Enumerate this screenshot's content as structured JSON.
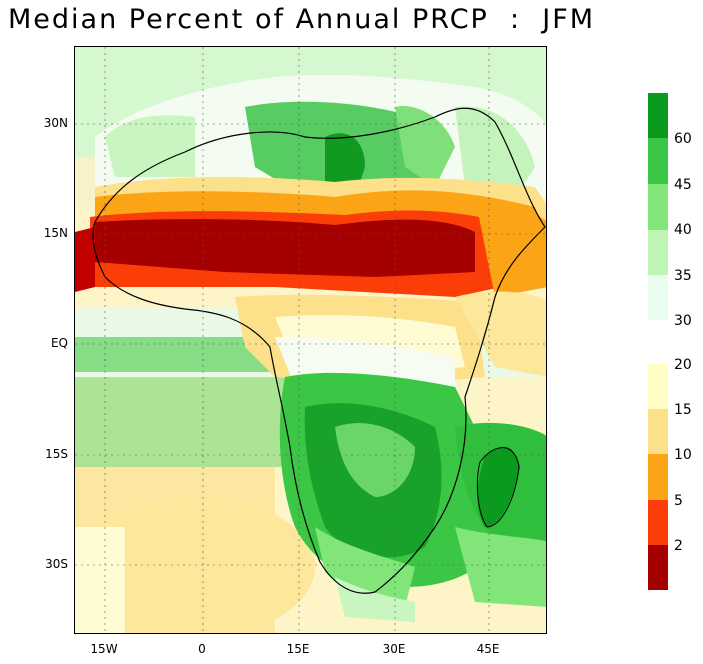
{
  "title": "Median Percent of Annual PRCP  :  JFM",
  "axes": {
    "y_ticks": [
      "30N",
      "15N",
      "EQ",
      "15S",
      "30S"
    ],
    "x_ticks": [
      "15W",
      "0",
      "15E",
      "30E",
      "45E"
    ]
  },
  "legend": {
    "upper": {
      "labels": [
        "60",
        "45",
        "40",
        "35",
        "30"
      ],
      "colors": [
        "#0a9a1e",
        "#3cc646",
        "#82e57a",
        "#bff5b4",
        "#eafdf0"
      ]
    },
    "lower": {
      "labels": [
        "20",
        "15",
        "10",
        "5",
        "2"
      ],
      "colors": [
        "#fffdc4",
        "#fde08a",
        "#fba416",
        "#fb3e08",
        "#a40000"
      ]
    }
  }
}
